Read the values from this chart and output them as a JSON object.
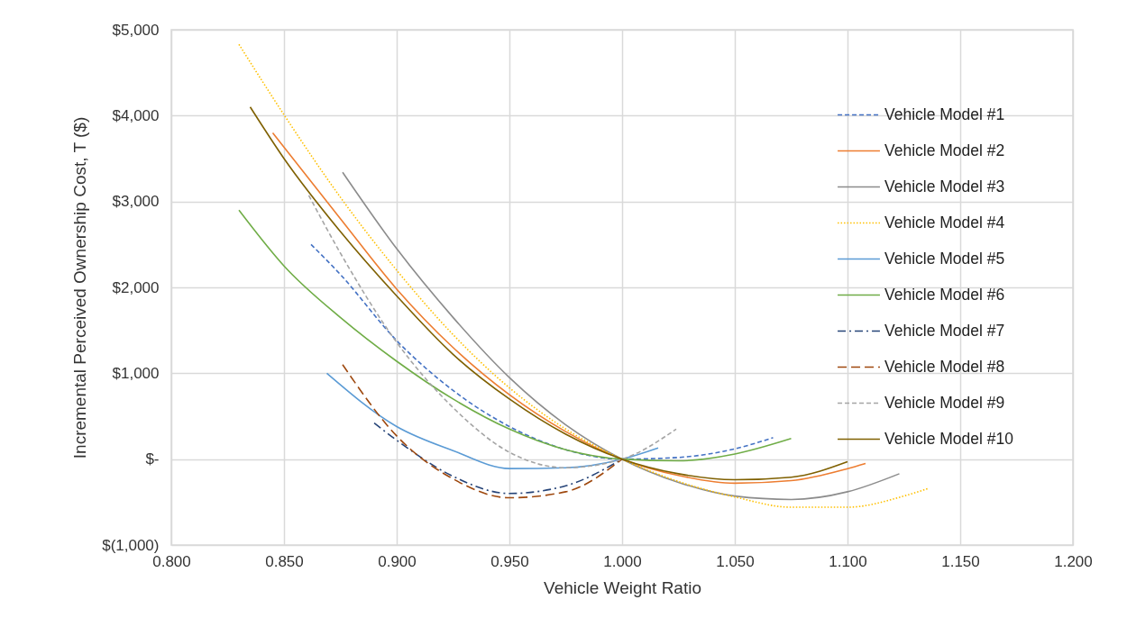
{
  "chart_data": {
    "type": "line",
    "xlabel": "Vehicle Weight Ratio",
    "ylabel": "Incremental Perceived Ownership Cost, T ($)",
    "xlim": [
      0.8,
      1.2
    ],
    "xticks": [
      {
        "value": 0.8,
        "label": "0.800"
      },
      {
        "value": 0.85,
        "label": "0.850"
      },
      {
        "value": 0.9,
        "label": "0.900"
      },
      {
        "value": 0.95,
        "label": "0.950"
      },
      {
        "value": 1.0,
        "label": "1.000"
      },
      {
        "value": 1.05,
        "label": "1.050"
      },
      {
        "value": 1.1,
        "label": "1.100"
      },
      {
        "value": 1.15,
        "label": "1.150"
      },
      {
        "value": 1.2,
        "label": "1.200"
      }
    ],
    "ylim": [
      -1000,
      5000
    ],
    "yticks": [
      {
        "value": -1000,
        "label": "$(1,000)"
      },
      {
        "value": 0,
        "label": "$-"
      },
      {
        "value": 1000,
        "label": "$1,000"
      },
      {
        "value": 2000,
        "label": "$2,000"
      },
      {
        "value": 3000,
        "label": "$3,000"
      },
      {
        "value": 4000,
        "label": "$4,000"
      },
      {
        "value": 5000,
        "label": "$5,000"
      }
    ],
    "grid": true,
    "legend": "right",
    "marker": "none",
    "series": [
      {
        "name": "Vehicle Model #1",
        "color": "#4472c4",
        "line_style": "dashed",
        "x": [
          0.862,
          0.875,
          0.9,
          0.925,
          0.95,
          0.975,
          1.0,
          1.025,
          1.05,
          1.067
        ],
        "values": [
          2500,
          2150,
          1380,
          800,
          380,
          110,
          0,
          20,
          120,
          250
        ]
      },
      {
        "name": "Vehicle Model #2",
        "color": "#ed7d31",
        "line_style": "solid",
        "x": [
          0.845,
          0.875,
          0.9,
          0.925,
          0.95,
          0.975,
          1.0,
          1.025,
          1.05,
          1.075,
          1.1,
          1.108
        ],
        "values": [
          3800,
          2800,
          1980,
          1300,
          750,
          320,
          0,
          -190,
          -280,
          -250,
          -110,
          -50
        ]
      },
      {
        "name": "Vehicle Model #3",
        "color": "#8c8c8c",
        "line_style": "solid",
        "x": [
          0.876,
          0.9,
          0.925,
          0.95,
          0.975,
          1.0,
          1.025,
          1.05,
          1.075,
          1.1,
          1.123
        ],
        "values": [
          3340,
          2450,
          1650,
          950,
          400,
          0,
          -270,
          -430,
          -470,
          -380,
          -170
        ]
      },
      {
        "name": "Vehicle Model #4",
        "color": "#ffc000",
        "line_style": "dotted",
        "x": [
          0.83,
          0.85,
          0.875,
          0.9,
          0.925,
          0.95,
          0.975,
          1.0,
          1.025,
          1.05,
          1.075,
          1.1,
          1.125,
          1.136
        ],
        "values": [
          4830,
          4010,
          3050,
          2200,
          1450,
          830,
          350,
          0,
          -260,
          -440,
          -560,
          -560,
          -430,
          -340
        ]
      },
      {
        "name": "Vehicle Model #5",
        "color": "#5b9bd5",
        "line_style": "solid",
        "x": [
          0.869,
          0.9,
          0.925,
          0.95,
          0.975,
          1.0,
          1.016
        ],
        "values": [
          1000,
          380,
          100,
          -110,
          -100,
          0,
          130
        ]
      },
      {
        "name": "Vehicle Model #6",
        "color": "#70ad47",
        "line_style": "solid",
        "x": [
          0.83,
          0.85,
          0.875,
          0.9,
          0.925,
          0.95,
          0.975,
          1.0,
          1.025,
          1.05,
          1.075
        ],
        "values": [
          2900,
          2250,
          1650,
          1140,
          700,
          350,
          110,
          0,
          -20,
          60,
          240
        ]
      },
      {
        "name": "Vehicle Model #7",
        "color": "#264478",
        "line_style": "dashdot",
        "x": [
          0.89,
          0.9,
          0.925,
          0.95,
          0.975,
          1.0
        ],
        "values": [
          420,
          220,
          -200,
          -400,
          -310,
          0
        ]
      },
      {
        "name": "Vehicle Model #8",
        "color": "#9e480e",
        "line_style": "longdash",
        "x": [
          0.876,
          0.9,
          0.925,
          0.95,
          0.975,
          1.0
        ],
        "values": [
          1100,
          270,
          -230,
          -450,
          -380,
          0
        ]
      },
      {
        "name": "Vehicle Model #9",
        "color": "#a5a5a5",
        "line_style": "dashed",
        "x": [
          0.861,
          0.875,
          0.9,
          0.925,
          0.95,
          0.975,
          1.0,
          1.024
        ],
        "values": [
          3070,
          2400,
          1360,
          600,
          80,
          -100,
          0,
          350
        ]
      },
      {
        "name": "Vehicle Model #10",
        "color": "#7f6000",
        "line_style": "solid",
        "x": [
          0.835,
          0.85,
          0.875,
          0.9,
          0.925,
          0.95,
          0.975,
          1.0,
          1.025,
          1.05,
          1.075,
          1.1
        ],
        "values": [
          4100,
          3500,
          2650,
          1900,
          1220,
          700,
          290,
          0,
          -170,
          -240,
          -210,
          -30
        ]
      }
    ]
  }
}
